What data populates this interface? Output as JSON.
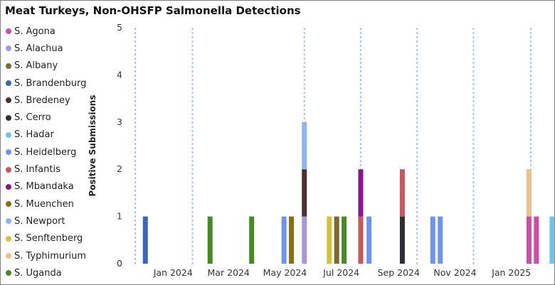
{
  "chart_data": {
    "type": "bar",
    "stacked": true,
    "title": "Meat Turkeys, Non-OHSFP Salmonella Detections",
    "ylabel": "Positive Submissions",
    "xlabel": "",
    "ylim": [
      0,
      5
    ],
    "yticks": [
      "0",
      "1",
      "2",
      "3",
      "4",
      "5"
    ],
    "grid": false,
    "legend_position": "left",
    "x_ticks": [
      {
        "label": "Jan 2024",
        "date": "2024-01-01"
      },
      {
        "label": "Mar 2024",
        "date": "2024-03-01"
      },
      {
        "label": "May 2024",
        "date": "2024-05-01"
      },
      {
        "label": "Jul 2024",
        "date": "2024-07-01"
      },
      {
        "label": "Sep 2024",
        "date": "2024-09-01"
      },
      {
        "label": "Nov 2024",
        "date": "2024-11-01"
      },
      {
        "label": "Jan 2025",
        "date": "2025-01-01"
      }
    ],
    "reference_lines": [
      "2023-12-01",
      "2024-02-01",
      "2024-06-01",
      "2024-08-01",
      "2024-10-01",
      "2024-12-01",
      "2025-02-01"
    ],
    "series": [
      {
        "name": "S. Agona",
        "color": "#c94fa8"
      },
      {
        "name": "S. Alachua",
        "color": "#a898d8"
      },
      {
        "name": "S. Albany",
        "color": "#7a6a30"
      },
      {
        "name": "S. Brandenburg",
        "color": "#3a66b8"
      },
      {
        "name": "S. Bredeney",
        "color": "#4a3030"
      },
      {
        "name": "S. Cerro",
        "color": "#2e2e34"
      },
      {
        "name": "S. Hadar",
        "color": "#6cc6ee"
      },
      {
        "name": "S. Heidelberg",
        "color": "#6d95f0"
      },
      {
        "name": "S. Infantis",
        "color": "#c8575a"
      },
      {
        "name": "S. Mbandaka",
        "color": "#86198c"
      },
      {
        "name": "S. Muenchen",
        "color": "#8a6e12"
      },
      {
        "name": "S. Newport",
        "color": "#8cb6ee"
      },
      {
        "name": "S. Senftenberg",
        "color": "#d2c23c"
      },
      {
        "name": "S. Typhimurium",
        "color": "#eec08e"
      },
      {
        "name": "S. Uganda",
        "color": "#468a28"
      }
    ],
    "points": [
      {
        "date": "2023-12-12",
        "stack": [
          {
            "s": "S. Brandenburg",
            "v": 1
          }
        ]
      },
      {
        "date": "2024-02-20",
        "stack": [
          {
            "s": "S. Uganda",
            "v": 1
          }
        ]
      },
      {
        "date": "2024-04-05",
        "stack": [
          {
            "s": "S. Uganda",
            "v": 1
          }
        ]
      },
      {
        "date": "2024-05-10",
        "stack": [
          {
            "s": "S. Heidelberg",
            "v": 1
          }
        ]
      },
      {
        "date": "2024-05-18",
        "stack": [
          {
            "s": "S. Muenchen",
            "v": 1
          }
        ]
      },
      {
        "date": "2024-06-01",
        "stack": [
          {
            "s": "S. Alachua",
            "v": 1
          },
          {
            "s": "S. Bredeney",
            "v": 1
          },
          {
            "s": "S. Newport",
            "v": 1
          }
        ]
      },
      {
        "date": "2024-06-28",
        "stack": [
          {
            "s": "S. Senftenberg",
            "v": 1
          }
        ]
      },
      {
        "date": "2024-07-06",
        "stack": [
          {
            "s": "S. Albany",
            "v": 1
          }
        ]
      },
      {
        "date": "2024-07-14",
        "stack": [
          {
            "s": "S. Uganda",
            "v": 1
          }
        ]
      },
      {
        "date": "2024-08-01",
        "stack": [
          {
            "s": "S. Infantis",
            "v": 1
          },
          {
            "s": "S. Mbandaka",
            "v": 1
          }
        ]
      },
      {
        "date": "2024-08-10",
        "stack": [
          {
            "s": "S. Heidelberg",
            "v": 1
          }
        ]
      },
      {
        "date": "2024-09-15",
        "stack": [
          {
            "s": "S. Cerro",
            "v": 1
          },
          {
            "s": "S. Infantis",
            "v": 1
          }
        ]
      },
      {
        "date": "2024-10-18",
        "stack": [
          {
            "s": "S. Heidelberg",
            "v": 1
          }
        ]
      },
      {
        "date": "2024-10-26",
        "stack": [
          {
            "s": "S. Heidelberg",
            "v": 1
          }
        ]
      },
      {
        "date": "2025-01-30",
        "stack": [
          {
            "s": "S. Agona",
            "v": 1
          },
          {
            "s": "S. Typhimurium",
            "v": 1
          }
        ]
      },
      {
        "date": "2025-02-07",
        "stack": [
          {
            "s": "S. Agona",
            "v": 1
          }
        ]
      },
      {
        "date": "2025-02-24",
        "stack": [
          {
            "s": "S. Hadar",
            "v": 1
          }
        ]
      }
    ]
  }
}
